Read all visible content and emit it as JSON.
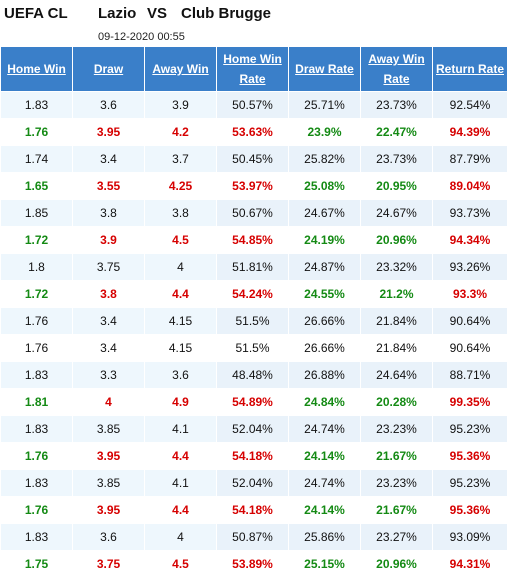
{
  "header": {
    "league": "UEFA CL",
    "home_team": "Lazio",
    "vs": "VS",
    "away_team": "Club Brugge",
    "datetime": "09-12-2020 00:55"
  },
  "table": {
    "columns": [
      [
        "Home Win"
      ],
      [
        "Draw"
      ],
      [
        "Away Win"
      ],
      [
        "Home Win",
        "Rate"
      ],
      [
        "Draw Rate"
      ],
      [
        "Away Win",
        "Rate"
      ],
      [
        "Return Rate"
      ]
    ],
    "rows": [
      {
        "changed": false,
        "cells": [
          "1.83",
          "3.6",
          "3.9",
          "50.57%",
          "25.71%",
          "23.73%",
          "92.54%"
        ]
      },
      {
        "changed": true,
        "cells": [
          "1.76",
          "3.95",
          "4.2",
          "53.63%",
          "23.9%",
          "22.47%",
          "94.39%"
        ]
      },
      {
        "changed": false,
        "cells": [
          "1.74",
          "3.4",
          "3.7",
          "50.45%",
          "25.82%",
          "23.73%",
          "87.79%"
        ]
      },
      {
        "changed": true,
        "cells": [
          "1.65",
          "3.55",
          "4.25",
          "53.97%",
          "25.08%",
          "20.95%",
          "89.04%"
        ]
      },
      {
        "changed": false,
        "cells": [
          "1.85",
          "3.8",
          "3.8",
          "50.67%",
          "24.67%",
          "24.67%",
          "93.73%"
        ]
      },
      {
        "changed": true,
        "cells": [
          "1.72",
          "3.9",
          "4.5",
          "54.85%",
          "24.19%",
          "20.96%",
          "94.34%"
        ]
      },
      {
        "changed": false,
        "cells": [
          "1.8",
          "3.75",
          "4",
          "51.81%",
          "24.87%",
          "23.32%",
          "93.26%"
        ]
      },
      {
        "changed": true,
        "cells": [
          "1.72",
          "3.8",
          "4.4",
          "54.24%",
          "24.55%",
          "21.2%",
          "93.3%"
        ]
      },
      {
        "changed": false,
        "cells": [
          "1.76",
          "3.4",
          "4.15",
          "51.5%",
          "26.66%",
          "21.84%",
          "90.64%"
        ]
      },
      {
        "changed": false,
        "cells": [
          "1.76",
          "3.4",
          "4.15",
          "51.5%",
          "26.66%",
          "21.84%",
          "90.64%"
        ]
      },
      {
        "changed": false,
        "cells": [
          "1.83",
          "3.3",
          "3.6",
          "48.48%",
          "26.88%",
          "24.64%",
          "88.71%"
        ]
      },
      {
        "changed": true,
        "cells": [
          "1.81",
          "4",
          "4.9",
          "54.89%",
          "24.84%",
          "20.28%",
          "99.35%"
        ]
      },
      {
        "changed": false,
        "cells": [
          "1.83",
          "3.85",
          "4.1",
          "52.04%",
          "24.74%",
          "23.23%",
          "95.23%"
        ]
      },
      {
        "changed": true,
        "cells": [
          "1.76",
          "3.95",
          "4.4",
          "54.18%",
          "24.14%",
          "21.67%",
          "95.36%"
        ]
      },
      {
        "changed": false,
        "cells": [
          "1.83",
          "3.85",
          "4.1",
          "52.04%",
          "24.74%",
          "23.23%",
          "95.23%"
        ]
      },
      {
        "changed": true,
        "cells": [
          "1.76",
          "3.95",
          "4.4",
          "54.18%",
          "24.14%",
          "21.67%",
          "95.36%"
        ]
      },
      {
        "changed": false,
        "cells": [
          "1.83",
          "3.6",
          "4",
          "50.87%",
          "25.86%",
          "23.27%",
          "93.09%"
        ]
      },
      {
        "changed": true,
        "cells": [
          "1.75",
          "3.75",
          "4.5",
          "53.89%",
          "25.15%",
          "20.96%",
          "94.31%"
        ]
      }
    ]
  },
  "colors": {
    "header_bg": "#3a7fc9",
    "home_win_change": "#148a14",
    "odds_change": "#d60000"
  }
}
